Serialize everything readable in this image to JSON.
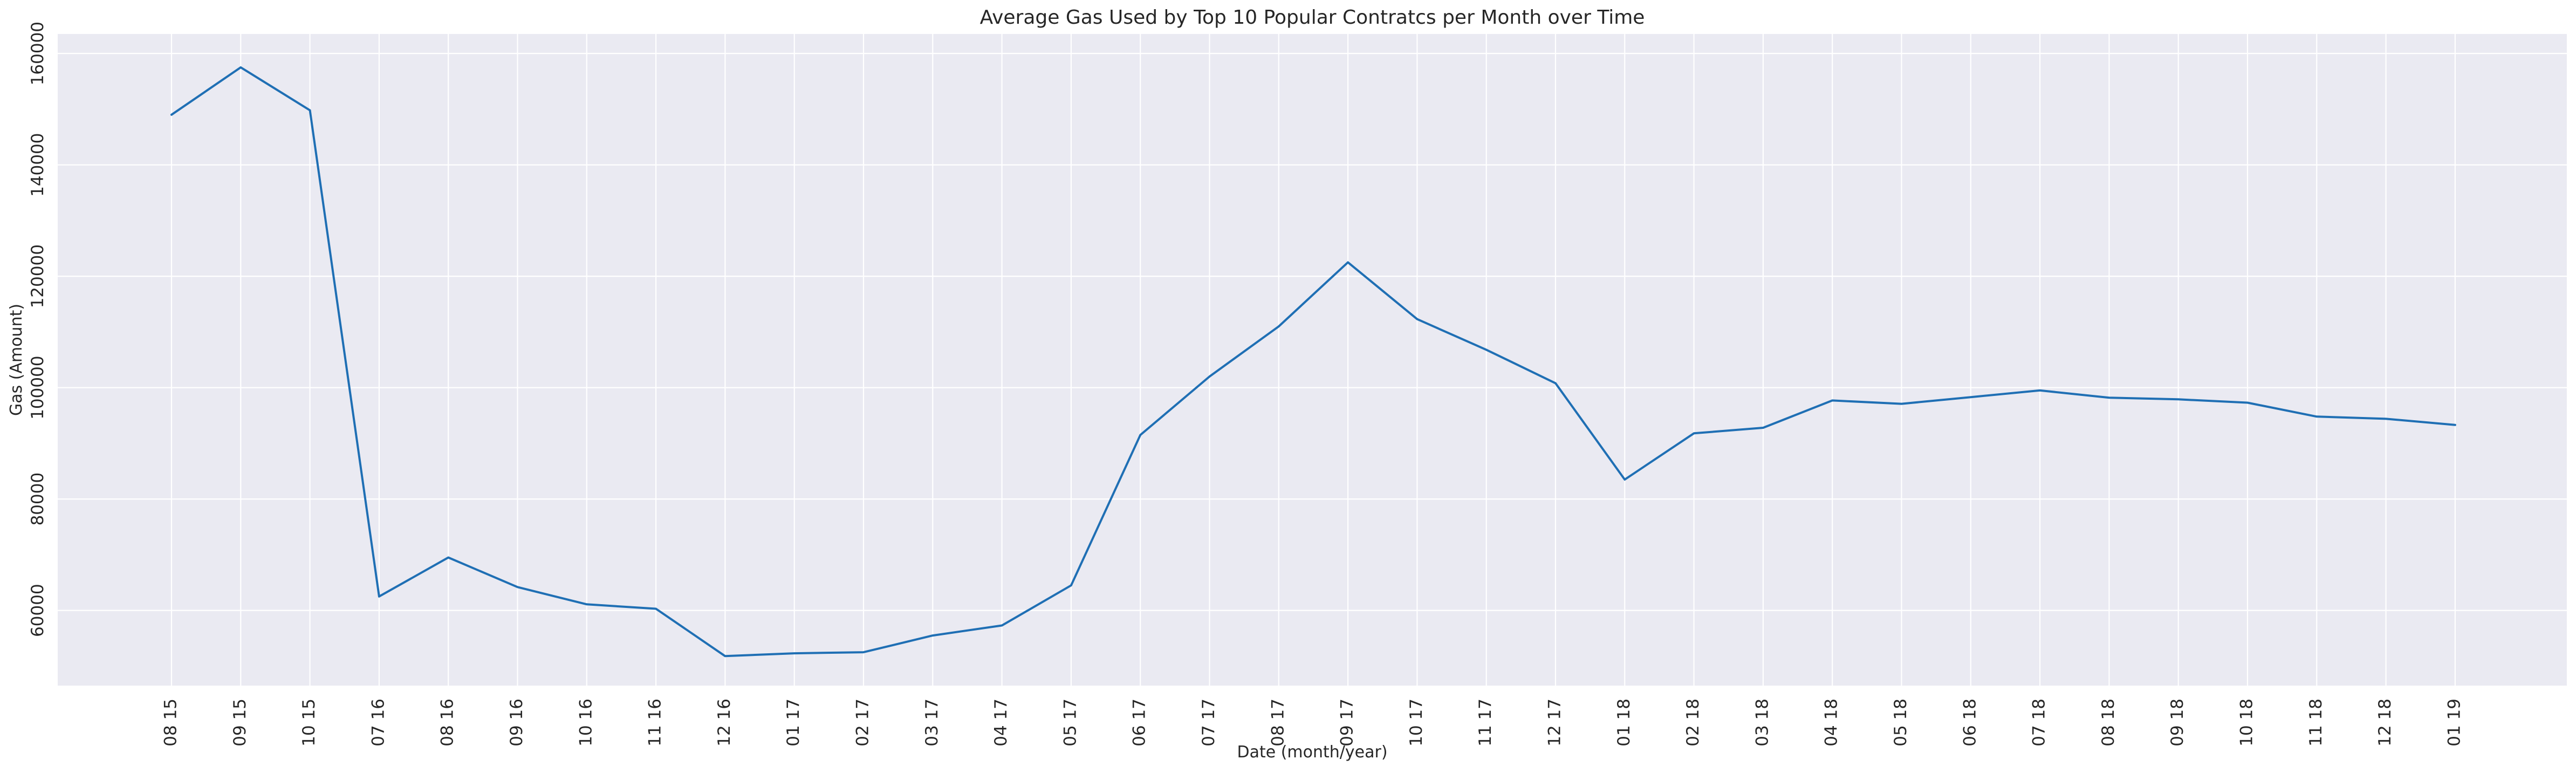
{
  "chart_data": {
    "type": "line",
    "title": "Average Gas Used by Top 10 Popular Contratcs per Month over Time",
    "xlabel": "Date (month/year)",
    "ylabel": "Gas (Amount)",
    "categories": [
      "08 15",
      "09 15",
      "10 15",
      "07 16",
      "08 16",
      "09 16",
      "10 16",
      "11 16",
      "12 16",
      "01 17",
      "02 17",
      "03 17",
      "04 17",
      "05 17",
      "06 17",
      "07 17",
      "08 17",
      "09 17",
      "10 17",
      "11 17",
      "12 17",
      "01 18",
      "02 18",
      "03 18",
      "04 18",
      "05 18",
      "06 18",
      "07 18",
      "08 18",
      "09 18",
      "10 18",
      "11 18",
      "12 18",
      "01 19"
    ],
    "series": [
      {
        "values": [
          149000,
          157500,
          149800,
          62500,
          69500,
          64200,
          61100,
          60300,
          51800,
          52300,
          52500,
          55500,
          57300,
          64500,
          91500,
          102000,
          111000,
          122500,
          112300,
          106800,
          100800,
          83500,
          91800,
          92800,
          97700,
          97100,
          98300,
          99500,
          98200,
          97900,
          97300,
          94800,
          94400,
          93300
        ]
      }
    ],
    "ylim": [
      46500,
      163500
    ],
    "yticks": [
      "60000",
      "80000",
      "100000",
      "120000",
      "140000",
      "160000"
    ],
    "grid": true,
    "colors": {
      "line": "#1f6fb4",
      "plot_background": "#eaeaf2",
      "grid": "#ffffff"
    }
  }
}
